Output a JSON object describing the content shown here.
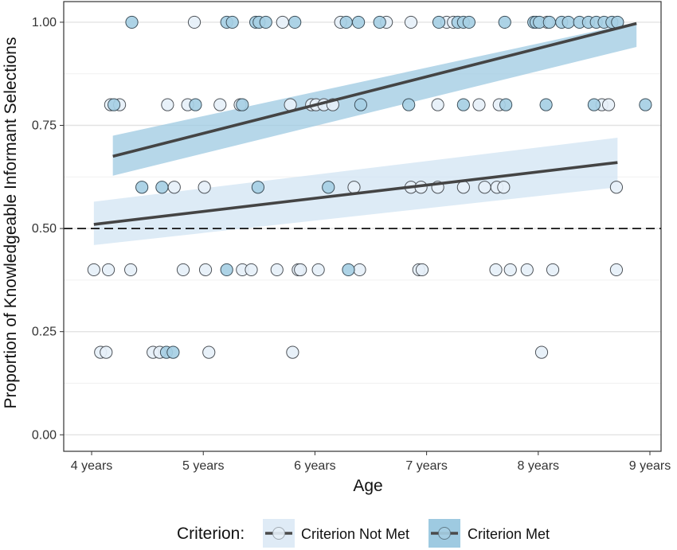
{
  "chart_data": {
    "type": "scatter",
    "xlabel": "Age",
    "ylabel": "Proportion of Knowledgeable Informant Selections",
    "xlim": [
      3.75,
      9.1
    ],
    "ylim": [
      -0.04,
      1.05
    ],
    "x_ticks": [
      {
        "value": 4,
        "label": "4 years"
      },
      {
        "value": 5,
        "label": "5 years"
      },
      {
        "value": 6,
        "label": "6 years"
      },
      {
        "value": 7,
        "label": "7 years"
      },
      {
        "value": 8,
        "label": "8 years"
      },
      {
        "value": 9,
        "label": "9 years"
      }
    ],
    "y_ticks": [
      {
        "value": 0,
        "label": "0.00"
      },
      {
        "value": 0.25,
        "label": "0.25"
      },
      {
        "value": 0.5,
        "label": "0.50"
      },
      {
        "value": 0.75,
        "label": "0.75"
      },
      {
        "value": 1,
        "label": "1.00"
      }
    ],
    "reference_line": {
      "y": 0.5,
      "style": "dashed"
    },
    "grid": true,
    "legend": {
      "title": "Criterion:",
      "position": "bottom",
      "entries": [
        "Criterion Not Met",
        "Criterion Met"
      ]
    },
    "series": [
      {
        "name": "Criterion Not Met",
        "point_color": "#e6f0f8",
        "band_color": "#d2e4f3",
        "fit": {
          "x": [
            4.02,
            8.71
          ],
          "y": [
            0.51,
            0.66
          ],
          "ci_lower": [
            0.46,
            0.6
          ],
          "ci_upper": [
            0.565,
            0.72
          ]
        },
        "points": [
          {
            "x": 4.02,
            "y": 0.4
          },
          {
            "x": 4.15,
            "y": 0.4
          },
          {
            "x": 4.35,
            "y": 0.4
          },
          {
            "x": 4.82,
            "y": 0.4
          },
          {
            "x": 5.02,
            "y": 0.4
          },
          {
            "x": 5.35,
            "y": 0.4
          },
          {
            "x": 5.43,
            "y": 0.4
          },
          {
            "x": 5.66,
            "y": 0.4
          },
          {
            "x": 5.85,
            "y": 0.4
          },
          {
            "x": 5.87,
            "y": 0.4
          },
          {
            "x": 6.03,
            "y": 0.4
          },
          {
            "x": 6.4,
            "y": 0.4
          },
          {
            "x": 6.93,
            "y": 0.4
          },
          {
            "x": 6.96,
            "y": 0.4
          },
          {
            "x": 7.62,
            "y": 0.4
          },
          {
            "x": 7.75,
            "y": 0.4
          },
          {
            "x": 7.9,
            "y": 0.4
          },
          {
            "x": 8.13,
            "y": 0.4
          },
          {
            "x": 8.7,
            "y": 0.4
          },
          {
            "x": 4.08,
            "y": 0.2
          },
          {
            "x": 4.13,
            "y": 0.2
          },
          {
            "x": 4.55,
            "y": 0.2
          },
          {
            "x": 4.61,
            "y": 0.2
          },
          {
            "x": 5.05,
            "y": 0.2
          },
          {
            "x": 5.8,
            "y": 0.2
          },
          {
            "x": 8.03,
            "y": 0.2
          },
          {
            "x": 4.74,
            "y": 0.6
          },
          {
            "x": 5.01,
            "y": 0.6
          },
          {
            "x": 6.35,
            "y": 0.6
          },
          {
            "x": 6.86,
            "y": 0.6
          },
          {
            "x": 6.95,
            "y": 0.6
          },
          {
            "x": 7.1,
            "y": 0.6
          },
          {
            "x": 7.33,
            "y": 0.6
          },
          {
            "x": 7.52,
            "y": 0.6
          },
          {
            "x": 7.63,
            "y": 0.6
          },
          {
            "x": 7.69,
            "y": 0.6
          },
          {
            "x": 8.7,
            "y": 0.6
          },
          {
            "x": 4.17,
            "y": 0.8
          },
          {
            "x": 4.25,
            "y": 0.8
          },
          {
            "x": 4.68,
            "y": 0.8
          },
          {
            "x": 4.86,
            "y": 0.8
          },
          {
            "x": 5.15,
            "y": 0.8
          },
          {
            "x": 5.33,
            "y": 0.8
          },
          {
            "x": 5.78,
            "y": 0.8
          },
          {
            "x": 5.97,
            "y": 0.8
          },
          {
            "x": 6.01,
            "y": 0.8
          },
          {
            "x": 6.08,
            "y": 0.8
          },
          {
            "x": 6.16,
            "y": 0.8
          },
          {
            "x": 7.1,
            "y": 0.8
          },
          {
            "x": 7.47,
            "y": 0.8
          },
          {
            "x": 7.65,
            "y": 0.8
          },
          {
            "x": 8.57,
            "y": 0.8
          },
          {
            "x": 8.63,
            "y": 0.8
          },
          {
            "x": 4.92,
            "y": 1.0
          },
          {
            "x": 5.71,
            "y": 1.0
          },
          {
            "x": 6.23,
            "y": 1.0
          },
          {
            "x": 6.64,
            "y": 1.0
          },
          {
            "x": 6.86,
            "y": 1.0
          },
          {
            "x": 7.18,
            "y": 1.0
          },
          {
            "x": 7.24,
            "y": 1.0
          },
          {
            "x": 8.08,
            "y": 1.0
          }
        ]
      },
      {
        "name": "Criterion Met",
        "point_color": "#a6cfe4",
        "band_color": "#9ecae1",
        "fit": {
          "x": [
            4.19,
            8.88
          ],
          "y": [
            0.675,
            0.997
          ],
          "ci_lower": [
            0.628,
            0.94
          ],
          "ci_upper": [
            0.725,
            1.0
          ]
        },
        "points": [
          {
            "x": 4.36,
            "y": 1.0
          },
          {
            "x": 5.21,
            "y": 1.0
          },
          {
            "x": 5.26,
            "y": 1.0
          },
          {
            "x": 5.47,
            "y": 1.0
          },
          {
            "x": 5.5,
            "y": 1.0
          },
          {
            "x": 5.56,
            "y": 1.0
          },
          {
            "x": 5.82,
            "y": 1.0
          },
          {
            "x": 6.28,
            "y": 1.0
          },
          {
            "x": 6.39,
            "y": 1.0
          },
          {
            "x": 6.58,
            "y": 1.0
          },
          {
            "x": 7.11,
            "y": 1.0
          },
          {
            "x": 7.28,
            "y": 1.0
          },
          {
            "x": 7.33,
            "y": 1.0
          },
          {
            "x": 7.38,
            "y": 1.0
          },
          {
            "x": 7.7,
            "y": 1.0
          },
          {
            "x": 7.96,
            "y": 1.0
          },
          {
            "x": 7.98,
            "y": 1.0
          },
          {
            "x": 8.01,
            "y": 1.0
          },
          {
            "x": 8.1,
            "y": 1.0
          },
          {
            "x": 8.21,
            "y": 1.0
          },
          {
            "x": 8.27,
            "y": 1.0
          },
          {
            "x": 8.37,
            "y": 1.0
          },
          {
            "x": 8.45,
            "y": 1.0
          },
          {
            "x": 8.52,
            "y": 1.0
          },
          {
            "x": 8.59,
            "y": 1.0
          },
          {
            "x": 8.66,
            "y": 1.0
          },
          {
            "x": 8.71,
            "y": 1.0
          },
          {
            "x": 4.2,
            "y": 0.8
          },
          {
            "x": 4.93,
            "y": 0.8
          },
          {
            "x": 5.35,
            "y": 0.8
          },
          {
            "x": 6.41,
            "y": 0.8
          },
          {
            "x": 6.84,
            "y": 0.8
          },
          {
            "x": 7.33,
            "y": 0.8
          },
          {
            "x": 7.71,
            "y": 0.8
          },
          {
            "x": 8.07,
            "y": 0.8
          },
          {
            "x": 8.5,
            "y": 0.8
          },
          {
            "x": 8.96,
            "y": 0.8
          },
          {
            "x": 4.45,
            "y": 0.6
          },
          {
            "x": 4.63,
            "y": 0.6
          },
          {
            "x": 5.49,
            "y": 0.6
          },
          {
            "x": 6.12,
            "y": 0.6
          },
          {
            "x": 5.21,
            "y": 0.4
          },
          {
            "x": 6.3,
            "y": 0.4
          },
          {
            "x": 4.67,
            "y": 0.2
          },
          {
            "x": 4.73,
            "y": 0.2
          }
        ]
      }
    ]
  }
}
